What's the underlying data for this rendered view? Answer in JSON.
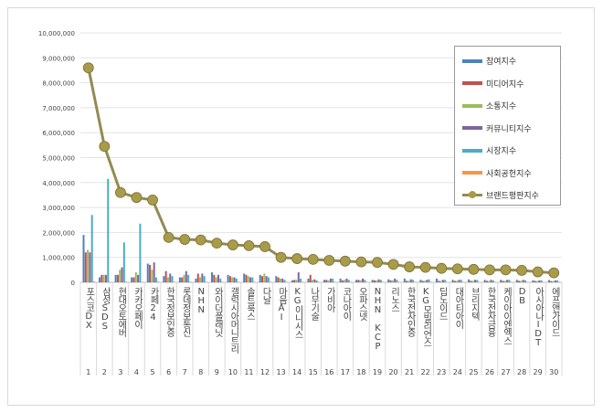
{
  "chart_data": {
    "type": "bar",
    "title": "",
    "xlabel": "",
    "ylabel": "",
    "ylim": [
      0,
      10000000
    ],
    "yticks": [
      "0",
      "1,000,000",
      "2,000,000",
      "3,000,000",
      "4,000,000",
      "5,000,000",
      "6,000,000",
      "7,000,000",
      "8,000,000",
      "9,000,000",
      "10,000,000"
    ],
    "grid": true,
    "legend_position": "right",
    "ranks": [
      "1",
      "2",
      "3",
      "4",
      "5",
      "6",
      "7",
      "8",
      "9",
      "10",
      "11",
      "12",
      "13",
      "14",
      "15",
      "16",
      "17",
      "18",
      "19",
      "20",
      "21",
      "22",
      "23",
      "24",
      "25",
      "26",
      "27",
      "28",
      "29",
      "30"
    ],
    "categories": [
      "포스코DX",
      "삼성SDS",
      "현대오토에버",
      "카카오페이",
      "카페24",
      "한국정보인증",
      "롯데정보통신",
      "NHN",
      "와이더플래닛",
      "갤럭시아머니트리",
      "솔트룩스",
      "다날",
      "마음AI",
      "KG이니시스",
      "나무기술",
      "가비아",
      "코나아이",
      "오파스넷",
      "NHN KCP",
      "리노스",
      "한국전자인증",
      "KG모빌리언스",
      "딥노이드",
      "대아티아이",
      "브리지텍",
      "한국전자금융",
      "케이아이엔엑스",
      "DB",
      "아시아나IDT",
      "에프앤가이드"
    ],
    "series": [
      {
        "name": "참여지수",
        "color": "#4F81BD",
        "values": [
          1900000,
          200000,
          300000,
          200000,
          750000,
          250000,
          200000,
          150000,
          400000,
          300000,
          350000,
          300000,
          250000,
          80000,
          150000,
          100000,
          150000,
          100000,
          100000,
          120000,
          150000,
          100000,
          150000,
          100000,
          120000,
          100000,
          100000,
          100000,
          80000,
          90000
        ]
      },
      {
        "name": "미디어지수",
        "color": "#C0504D",
        "values": [
          1200000,
          300000,
          300000,
          200000,
          700000,
          450000,
          200000,
          350000,
          300000,
          250000,
          300000,
          250000,
          200000,
          100000,
          300000,
          100000,
          80000,
          100000,
          80000,
          80000,
          60000,
          60000,
          60000,
          60000,
          60000,
          60000,
          60000,
          60000,
          60000,
          50000
        ]
      },
      {
        "name": "소통지수",
        "color": "#9BBB59",
        "values": [
          1300000,
          300000,
          500000,
          400000,
          500000,
          200000,
          300000,
          200000,
          200000,
          200000,
          250000,
          350000,
          150000,
          100000,
          100000,
          80000,
          100000,
          80000,
          80000,
          80000,
          60000,
          60000,
          60000,
          60000,
          60000,
          60000,
          60000,
          60000,
          50000,
          50000
        ]
      },
      {
        "name": "커뮤니티지수",
        "color": "#8064A2",
        "values": [
          1200000,
          300000,
          600000,
          300000,
          800000,
          350000,
          450000,
          350000,
          300000,
          200000,
          200000,
          250000,
          150000,
          400000,
          120000,
          150000,
          150000,
          150000,
          120000,
          150000,
          120000,
          100000,
          100000,
          100000,
          100000,
          100000,
          100000,
          100000,
          80000,
          80000
        ]
      },
      {
        "name": "시장지수",
        "color": "#4BACC6",
        "values": [
          2700000,
          4150000,
          1600000,
          2350000,
          200000,
          250000,
          300000,
          250000,
          150000,
          150000,
          200000,
          200000,
          100000,
          150000,
          80000,
          150000,
          100000,
          100000,
          100000,
          100000,
          100000,
          120000,
          100000,
          100000,
          100000,
          80000,
          100000,
          80000,
          80000,
          80000
        ]
      },
      {
        "name": "사회공헌지수",
        "color": "#F79646",
        "values": [
          40000,
          20000,
          30000,
          20000,
          30000,
          20000,
          30000,
          20000,
          20000,
          20000,
          20000,
          20000,
          20000,
          20000,
          20000,
          20000,
          20000,
          20000,
          20000,
          20000,
          20000,
          20000,
          20000,
          20000,
          20000,
          20000,
          20000,
          20000,
          20000,
          20000
        ]
      }
    ],
    "line_series": {
      "name": "브랜드평판지수",
      "color": "#948A54",
      "type": "line",
      "values": [
        8600000,
        5450000,
        3600000,
        3400000,
        3300000,
        1800000,
        1720000,
        1700000,
        1570000,
        1500000,
        1470000,
        1430000,
        1000000,
        950000,
        920000,
        880000,
        850000,
        820000,
        800000,
        720000,
        620000,
        600000,
        560000,
        540000,
        520000,
        500000,
        500000,
        480000,
        420000,
        380000
      ]
    }
  }
}
